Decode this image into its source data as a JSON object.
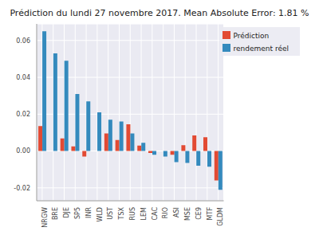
{
  "chart_data": {
    "type": "bar",
    "title": "Prédiction du lundi 27 novembre 2017. Mean Absolute Error: 1.81 %",
    "categories": [
      "NRGW",
      "BRE",
      "DJE",
      "SP5",
      "INR",
      "WLD",
      "UST",
      "TSX",
      "RUS",
      "LEM",
      "CAC",
      "RIO",
      "ASI",
      "MSE",
      "CE9",
      "MTF",
      "GLDM"
    ],
    "series": [
      {
        "name": "Prédiction",
        "color": "#E24A33",
        "values": [
          0.0135,
          0.0,
          0.0068,
          0.0025,
          -0.003,
          0.0,
          0.0095,
          0.006,
          0.0145,
          0.003,
          -0.001,
          0.0,
          -0.002,
          0.0032,
          0.0085,
          0.0075,
          -0.016
        ]
      },
      {
        "name": "rendement réel",
        "color": "#348ABD",
        "values": [
          0.065,
          0.053,
          0.049,
          0.031,
          0.027,
          0.021,
          0.017,
          0.016,
          0.0095,
          0.0045,
          -0.002,
          -0.003,
          -0.006,
          -0.0065,
          -0.008,
          -0.0085,
          -0.021
        ]
      }
    ],
    "ylim": [
      -0.027,
      0.069
    ],
    "yticks": [
      -0.02,
      {
        "value": 0,
        "label": "0.00"
      },
      0.02,
      0.04,
      0.06
    ],
    "grid": true,
    "legend": "upper right"
  }
}
